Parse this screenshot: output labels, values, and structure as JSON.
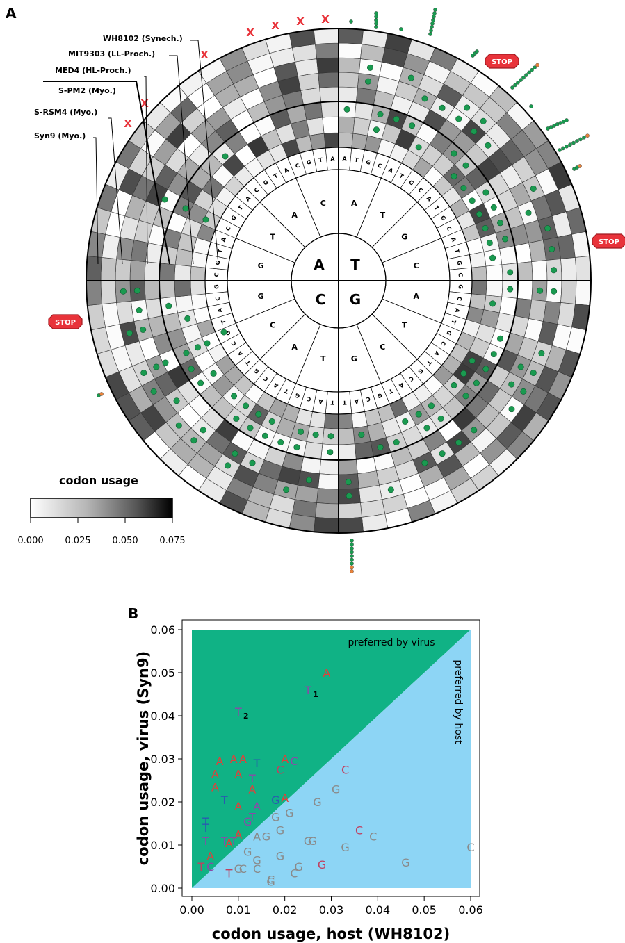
{
  "panels": {
    "a": {
      "letter": "A"
    },
    "b": {
      "letter": "B"
    }
  },
  "colors": {
    "green_dot": "#1a9a50",
    "orange_dot": "#e8823a",
    "stop_sign": "#e8333a",
    "x_mark": "#e8333a",
    "virus_region": "#10b285",
    "host_region": "#8dd5f5",
    "label_A": "#e0403a",
    "label_T": "#8a4aa8",
    "label_C": "#c04060",
    "label_G": "#8a8a8a",
    "label_blue": "#2a5ab0"
  },
  "wheel": {
    "nucleotides_inner": [
      "A",
      "T",
      "G",
      "C"
    ],
    "ring2_bases": [
      "A",
      "T",
      "G",
      "C",
      "A",
      "T",
      "C",
      "G",
      "T",
      "A",
      "C",
      "G",
      "G",
      "T",
      "A",
      "C"
    ],
    "ring3_bases": [
      "A",
      "T",
      "G",
      "C",
      "A",
      "T",
      "G",
      "C",
      "A",
      "T",
      "G",
      "C",
      "A",
      "T",
      "G",
      "C",
      "G",
      "C",
      "A",
      "T",
      "G",
      "C",
      "A",
      "T",
      "G",
      "C",
      "A",
      "T",
      "G",
      "C",
      "A",
      "T",
      "T",
      "A",
      "C",
      "G",
      "T",
      "A",
      "C",
      "G",
      "T",
      "A",
      "C",
      "G",
      "T",
      "A",
      "C",
      "G",
      "C",
      "G",
      "T",
      "A",
      "C",
      "G",
      "T",
      "A",
      "C",
      "G",
      "T",
      "A",
      "C",
      "G",
      "T",
      "A"
    ],
    "genome_labels": [
      "WH8102 (Synech.)",
      "MIT9303 (LL-Proch.)",
      "MED4 (HL-Proch.)",
      "S-PM2 (Myo.)",
      "S-RSM4 (Myo.)",
      "Syn9 (Myo.)"
    ],
    "stop_label": "STOP",
    "x_label": "X"
  },
  "legend": {
    "title": "codon usage",
    "ticks": [
      "0.000",
      "0.025",
      "0.050",
      "0.075"
    ],
    "range": [
      0,
      0.075
    ]
  },
  "chart_data": {
    "type": "scatter",
    "xlabel": "codon usage, host (WH8102)",
    "ylabel": "codon usage, virus (Syn9)",
    "xlim": [
      0,
      0.06
    ],
    "ylim": [
      0,
      0.06
    ],
    "xticks": [
      "0.00",
      "0.01",
      "0.02",
      "0.03",
      "0.04",
      "0.05",
      "0.06"
    ],
    "yticks": [
      "0.00",
      "0.01",
      "0.02",
      "0.03",
      "0.04",
      "0.05",
      "0.06"
    ],
    "region_labels": {
      "virus": "preferred by virus",
      "host": "preferred by host"
    },
    "points": [
      {
        "label": "A",
        "x": 0.029,
        "y": 0.05,
        "cls": "A"
      },
      {
        "label": "T",
        "sub": "1",
        "x": 0.025,
        "y": 0.046,
        "cls": "T"
      },
      {
        "label": "T",
        "sub": "2",
        "x": 0.01,
        "y": 0.041,
        "cls": "T"
      },
      {
        "label": "A",
        "x": 0.006,
        "y": 0.0295,
        "cls": "A"
      },
      {
        "label": "A",
        "x": 0.009,
        "y": 0.03,
        "cls": "A"
      },
      {
        "label": "A",
        "x": 0.011,
        "y": 0.03,
        "cls": "A"
      },
      {
        "label": "T",
        "x": 0.014,
        "y": 0.029,
        "cls": "B"
      },
      {
        "label": "A",
        "x": 0.02,
        "y": 0.03,
        "cls": "A"
      },
      {
        "label": "C",
        "x": 0.022,
        "y": 0.0295,
        "cls": "T"
      },
      {
        "label": "A",
        "x": 0.005,
        "y": 0.0265,
        "cls": "A"
      },
      {
        "label": "A",
        "x": 0.01,
        "y": 0.0265,
        "cls": "A"
      },
      {
        "label": "C",
        "x": 0.019,
        "y": 0.0275,
        "cls": "C"
      },
      {
        "label": "C",
        "x": 0.033,
        "y": 0.0275,
        "cls": "C"
      },
      {
        "label": "T",
        "x": 0.013,
        "y": 0.0255,
        "cls": "T"
      },
      {
        "label": "A",
        "x": 0.005,
        "y": 0.0235,
        "cls": "A"
      },
      {
        "label": "A",
        "x": 0.013,
        "y": 0.023,
        "cls": "A"
      },
      {
        "label": "G",
        "x": 0.031,
        "y": 0.023,
        "cls": "G"
      },
      {
        "label": "T",
        "x": 0.007,
        "y": 0.0205,
        "cls": "B"
      },
      {
        "label": "A",
        "x": 0.01,
        "y": 0.019,
        "cls": "A"
      },
      {
        "label": "A",
        "x": 0.014,
        "y": 0.019,
        "cls": "T"
      },
      {
        "label": "G",
        "x": 0.018,
        "y": 0.0205,
        "cls": "B"
      },
      {
        "label": "A",
        "x": 0.02,
        "y": 0.021,
        "cls": "A"
      },
      {
        "label": "G",
        "x": 0.027,
        "y": 0.02,
        "cls": "G"
      },
      {
        "label": "T",
        "x": 0.013,
        "y": 0.0165,
        "cls": "T"
      },
      {
        "label": "G",
        "x": 0.012,
        "y": 0.0155,
        "cls": "T"
      },
      {
        "label": "G",
        "x": 0.018,
        "y": 0.0165,
        "cls": "G"
      },
      {
        "label": "G",
        "x": 0.021,
        "y": 0.0175,
        "cls": "G"
      },
      {
        "label": "T",
        "x": 0.003,
        "y": 0.0155,
        "cls": "B"
      },
      {
        "label": "T",
        "x": 0.003,
        "y": 0.014,
        "cls": "B"
      },
      {
        "label": "G",
        "x": 0.019,
        "y": 0.0135,
        "cls": "G"
      },
      {
        "label": "A",
        "x": 0.01,
        "y": 0.0125,
        "cls": "A"
      },
      {
        "label": "A",
        "x": 0.014,
        "y": 0.012,
        "cls": "G"
      },
      {
        "label": "G",
        "x": 0.016,
        "y": 0.012,
        "cls": "G"
      },
      {
        "label": "C",
        "x": 0.036,
        "y": 0.0135,
        "cls": "C"
      },
      {
        "label": "C",
        "x": 0.039,
        "y": 0.012,
        "cls": "G"
      },
      {
        "label": "G",
        "x": 0.025,
        "y": 0.011,
        "cls": "G"
      },
      {
        "label": "G",
        "x": 0.026,
        "y": 0.011,
        "cls": "G"
      },
      {
        "label": "T",
        "x": 0.003,
        "y": 0.011,
        "cls": "T"
      },
      {
        "label": "T",
        "x": 0.007,
        "y": 0.011,
        "cls": "T"
      },
      {
        "label": "A",
        "x": 0.008,
        "y": 0.0105,
        "cls": "A"
      },
      {
        "label": "T",
        "x": 0.009,
        "y": 0.011,
        "cls": "T"
      },
      {
        "label": "G",
        "x": 0.033,
        "y": 0.0095,
        "cls": "G"
      },
      {
        "label": "C",
        "x": 0.06,
        "y": 0.0095,
        "cls": "G"
      },
      {
        "label": "A",
        "x": 0.004,
        "y": 0.0075,
        "cls": "A"
      },
      {
        "label": "G",
        "x": 0.012,
        "y": 0.0085,
        "cls": "G"
      },
      {
        "label": "G",
        "x": 0.014,
        "y": 0.0065,
        "cls": "G"
      },
      {
        "label": "G",
        "x": 0.019,
        "y": 0.0075,
        "cls": "G"
      },
      {
        "label": "G",
        "x": 0.046,
        "y": 0.006,
        "cls": "G"
      },
      {
        "label": "T",
        "x": 0.002,
        "y": 0.005,
        "cls": "C"
      },
      {
        "label": "C",
        "x": 0.004,
        "y": 0.005,
        "cls": "T"
      },
      {
        "label": "G",
        "x": 0.01,
        "y": 0.0045,
        "cls": "G"
      },
      {
        "label": "C",
        "x": 0.011,
        "y": 0.0045,
        "cls": "G"
      },
      {
        "label": "C",
        "x": 0.014,
        "y": 0.0045,
        "cls": "G"
      },
      {
        "label": "G",
        "x": 0.023,
        "y": 0.005,
        "cls": "G"
      },
      {
        "label": "G",
        "x": 0.028,
        "y": 0.0055,
        "cls": "C"
      },
      {
        "label": "T",
        "x": 0.008,
        "y": 0.0035,
        "cls": "C"
      },
      {
        "label": "C",
        "x": 0.022,
        "y": 0.0035,
        "cls": "G"
      },
      {
        "label": "C",
        "x": 0.017,
        "y": 0.002,
        "cls": "G"
      },
      {
        "label": "G",
        "x": 0.017,
        "y": 0.0015,
        "cls": "G"
      }
    ]
  }
}
